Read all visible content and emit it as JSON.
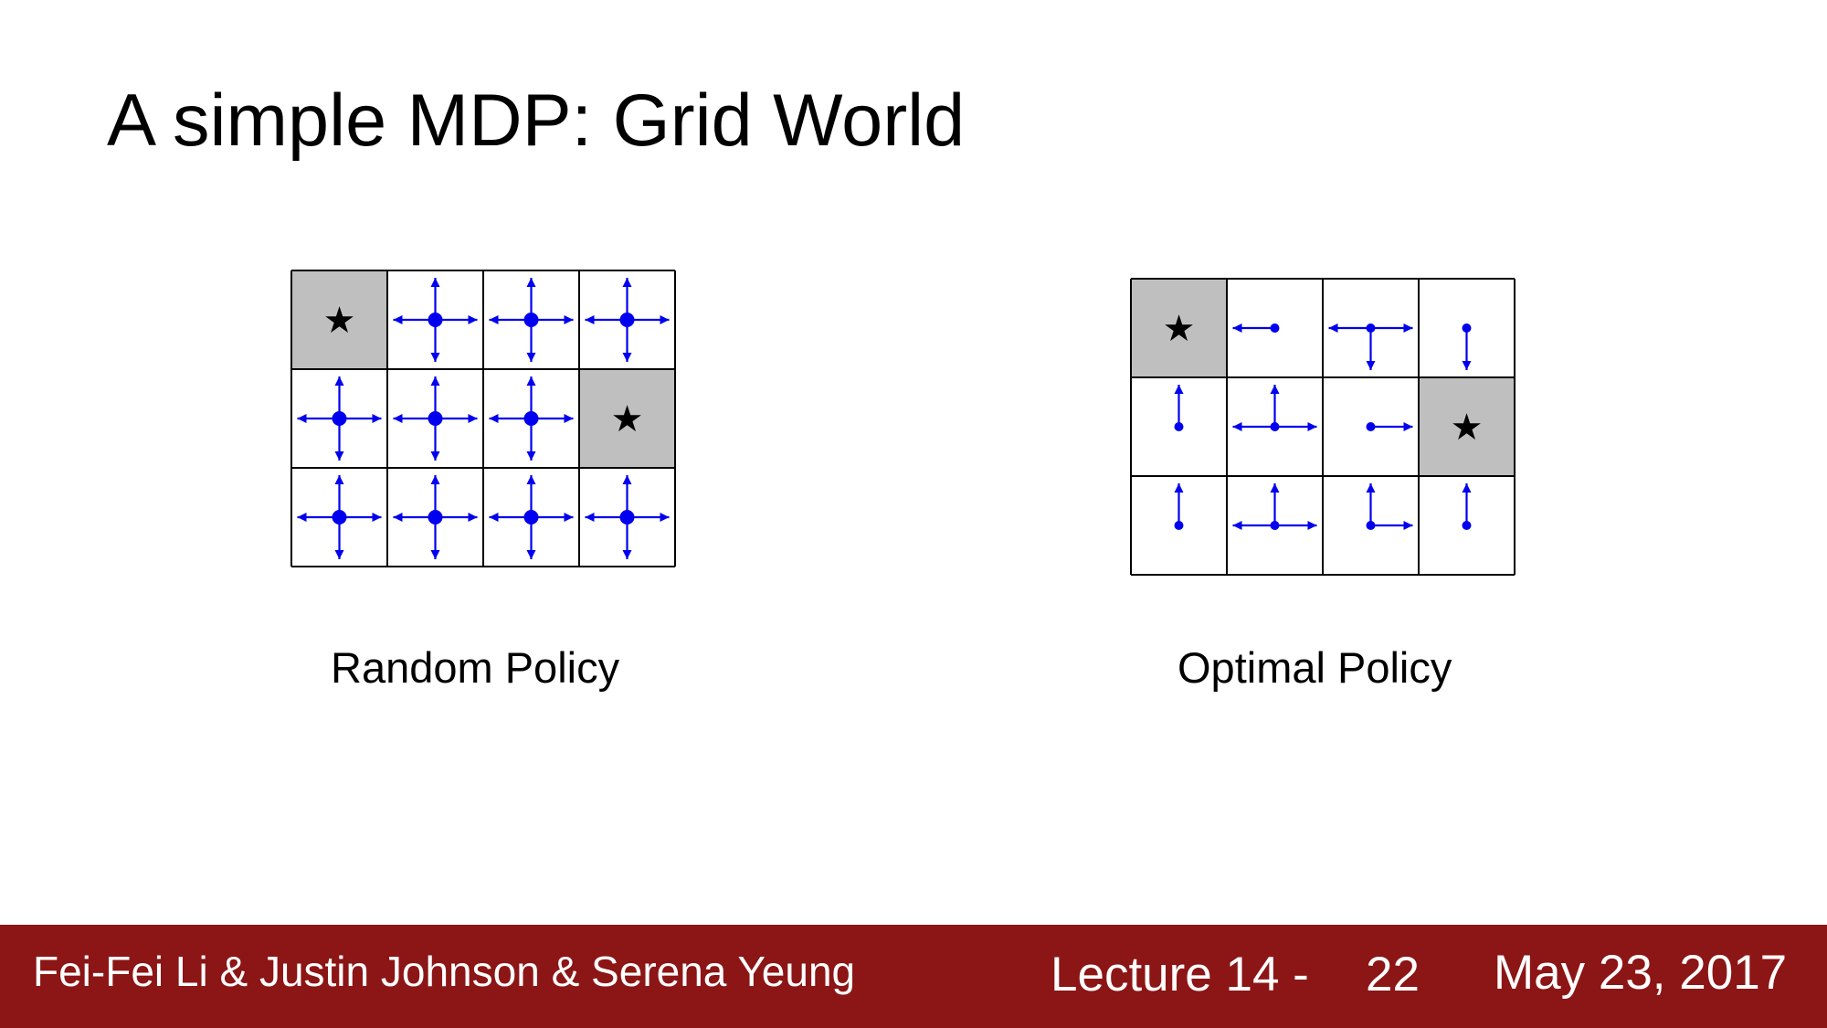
{
  "slide": {
    "title": "A simple MDP: Grid World",
    "random_caption": "Random Policy",
    "optimal_caption": "Optimal Policy"
  },
  "footer": {
    "authors": "Fei-Fei Li & Justin Johnson & Serena Yeung",
    "lecture": "Lecture 14 -",
    "slide_number": "22",
    "date": "May 23, 2017"
  },
  "colors": {
    "footer_background": "#8c1515",
    "arrow": "#0000ee",
    "terminal_cell": "#bfbfbf",
    "grid_line": "#000000"
  },
  "grids": {
    "random_policy": {
      "rows": 3,
      "cols": 4,
      "cells": [
        [
          "star",
          "all",
          "all",
          "all"
        ],
        [
          "all",
          "all",
          "all",
          "star"
        ],
        [
          "all",
          "all",
          "all",
          "all"
        ]
      ]
    },
    "optimal_policy": {
      "rows": 3,
      "cols": 4,
      "cells": [
        [
          "star",
          "left",
          "left-right-down",
          "down"
        ],
        [
          "up",
          "up-left-right",
          "right",
          "star"
        ],
        [
          "up",
          "up-left-right",
          "up-right",
          "up"
        ]
      ]
    }
  },
  "icons": {
    "terminal": "star-icon",
    "arrow": "arrow-icon"
  }
}
